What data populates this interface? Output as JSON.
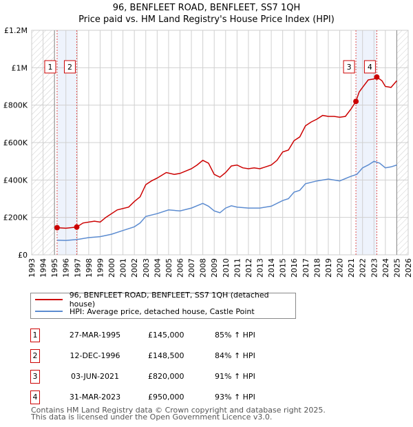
{
  "title": "96, BENFLEET ROAD, BENFLEET, SS7 1QH",
  "subtitle": "Price paid vs. HM Land Registry's House Price Index (HPI)",
  "chart_data": {
    "type": "line",
    "title": "96, BENFLEET ROAD, BENFLEET, SS7 1QH",
    "subtitle": "Price paid vs. HM Land Registry's House Price Index (HPI)",
    "xlim": [
      1993,
      2026
    ],
    "ylim": [
      0,
      1200000
    ],
    "x_ticks": [
      "1993",
      "1994",
      "1995",
      "1996",
      "1997",
      "1998",
      "1999",
      "2000",
      "2001",
      "2002",
      "2003",
      "2004",
      "2005",
      "2006",
      "2007",
      "2008",
      "2009",
      "2010",
      "2011",
      "2012",
      "2013",
      "2014",
      "2015",
      "2016",
      "2017",
      "2018",
      "2019",
      "2020",
      "2021",
      "2022",
      "2023",
      "2024",
      "2025",
      "2026"
    ],
    "y_ticks": [
      {
        "v": 0,
        "l": "£0"
      },
      {
        "v": 200000,
        "l": "£200K"
      },
      {
        "v": 400000,
        "l": "£400K"
      },
      {
        "v": 600000,
        "l": "£600K"
      },
      {
        "v": 800000,
        "l": "£800K"
      },
      {
        "v": 1000000,
        "l": "£1M"
      },
      {
        "v": 1200000,
        "l": "£1.2M"
      }
    ],
    "grid": true,
    "hatched_ranges": [
      [
        1993,
        1995
      ],
      [
        2025,
        2026
      ]
    ],
    "shaded_ranges": [
      [
        1995.23,
        1996.95
      ],
      [
        2021.42,
        2023.25
      ]
    ],
    "series": [
      {
        "name": "96, BENFLEET ROAD, BENFLEET, SS7 1QH (detached house)",
        "color": "#cc0000",
        "x": [
          1995.23,
          1996,
          1996.95,
          1997.5,
          1998.5,
          1999,
          1999.5,
          2000.5,
          2001.5,
          2002,
          2002.5,
          2003,
          2003.5,
          2004,
          2004.8,
          2005.5,
          2006,
          2007,
          2007.5,
          2008,
          2008.5,
          2009,
          2009.5,
          2010,
          2010.5,
          2011,
          2011.5,
          2012,
          2012.5,
          2013,
          2013.5,
          2014,
          2014.5,
          2015,
          2015.5,
          2016,
          2016.5,
          2017,
          2017.5,
          2018,
          2018.5,
          2019,
          2019.5,
          2020,
          2020.5,
          2021,
          2021.42,
          2021.7,
          2022,
          2022.5,
          2023,
          2023.25,
          2023.7,
          2024,
          2024.5,
          2025
        ],
        "y": [
          145000,
          142000,
          148500,
          170000,
          180000,
          175000,
          200000,
          240000,
          255000,
          285000,
          310000,
          375000,
          395000,
          410000,
          440000,
          430000,
          435000,
          460000,
          480000,
          505000,
          490000,
          430000,
          415000,
          440000,
          475000,
          480000,
          465000,
          460000,
          465000,
          460000,
          470000,
          480000,
          505000,
          550000,
          560000,
          610000,
          630000,
          690000,
          710000,
          725000,
          745000,
          740000,
          740000,
          735000,
          740000,
          780000,
          820000,
          870000,
          895000,
          935000,
          940000,
          950000,
          930000,
          900000,
          895000,
          930000
        ]
      },
      {
        "name": "HPI: Average price, detached house, Castle Point",
        "color": "#5b8bd0",
        "x": [
          1995.23,
          1996,
          1997,
          1998,
          1999,
          2000,
          2001,
          2002,
          2002.5,
          2003,
          2004,
          2005,
          2006,
          2007,
          2008,
          2008.5,
          2009,
          2009.5,
          2010,
          2010.5,
          2011,
          2012,
          2013,
          2014,
          2015,
          2015.5,
          2016,
          2016.5,
          2017,
          2018,
          2019,
          2020,
          2021,
          2021.5,
          2022,
          2022.5,
          2023,
          2023.5,
          2024,
          2024.5,
          2025
        ],
        "y": [
          78000,
          77000,
          82000,
          92000,
          97000,
          110000,
          130000,
          150000,
          170000,
          205000,
          220000,
          240000,
          235000,
          250000,
          275000,
          260000,
          235000,
          225000,
          250000,
          262000,
          255000,
          250000,
          250000,
          260000,
          290000,
          300000,
          335000,
          345000,
          380000,
          395000,
          405000,
          395000,
          420000,
          430000,
          465000,
          480000,
          500000,
          490000,
          465000,
          470000,
          480000
        ]
      }
    ],
    "sales": [
      {
        "n": "1",
        "x": 1995.23,
        "y": 145000,
        "date": "27-MAR-1995",
        "price": "£145,000",
        "hpi": "85% ↑ HPI"
      },
      {
        "n": "2",
        "x": 1996.95,
        "y": 148500,
        "date": "12-DEC-1996",
        "price": "£148,500",
        "hpi": "84% ↑ HPI"
      },
      {
        "n": "3",
        "x": 2021.42,
        "y": 820000,
        "date": "03-JUN-2021",
        "price": "£820,000",
        "hpi": "91% ↑ HPI"
      },
      {
        "n": "4",
        "x": 2023.25,
        "y": 950000,
        "date": "31-MAR-2023",
        "price": "£950,000",
        "hpi": "93% ↑ HPI"
      }
    ],
    "legend": "below"
  },
  "legend": {
    "red": "96, BENFLEET ROAD, BENFLEET, SS7 1QH (detached house)",
    "blue": "HPI: Average price, detached house, Castle Point"
  },
  "footer": {
    "line1": "Contains HM Land Registry data © Crown copyright and database right 2025.",
    "line2": "This data is licensed under the Open Government Licence v3.0."
  }
}
